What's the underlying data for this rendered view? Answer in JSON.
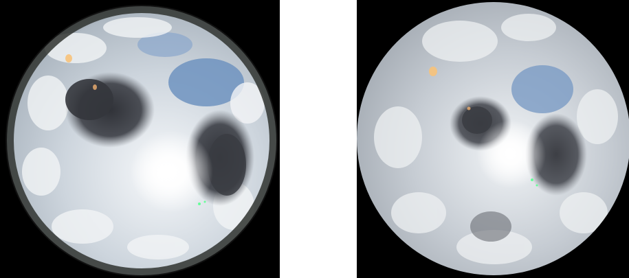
{
  "images": [
    {
      "name": "raw-fisheye-sky-image",
      "description_shown": "",
      "colors": {
        "background": "#000000",
        "sky": "#cfd7df",
        "blue_patch": "#6f93c0",
        "dark_cloud": "#3d3f45",
        "sun": "#ffffff",
        "horizon": "#2a2d2a"
      }
    },
    {
      "name": "processed-sky-image",
      "description_shown": "",
      "colors": {
        "background": "#000000",
        "sky": "#c9cfd6",
        "blue_patch": "#7a9bc4",
        "dark_cloud": "#4a4c52",
        "sun": "#ffffff"
      }
    }
  ]
}
